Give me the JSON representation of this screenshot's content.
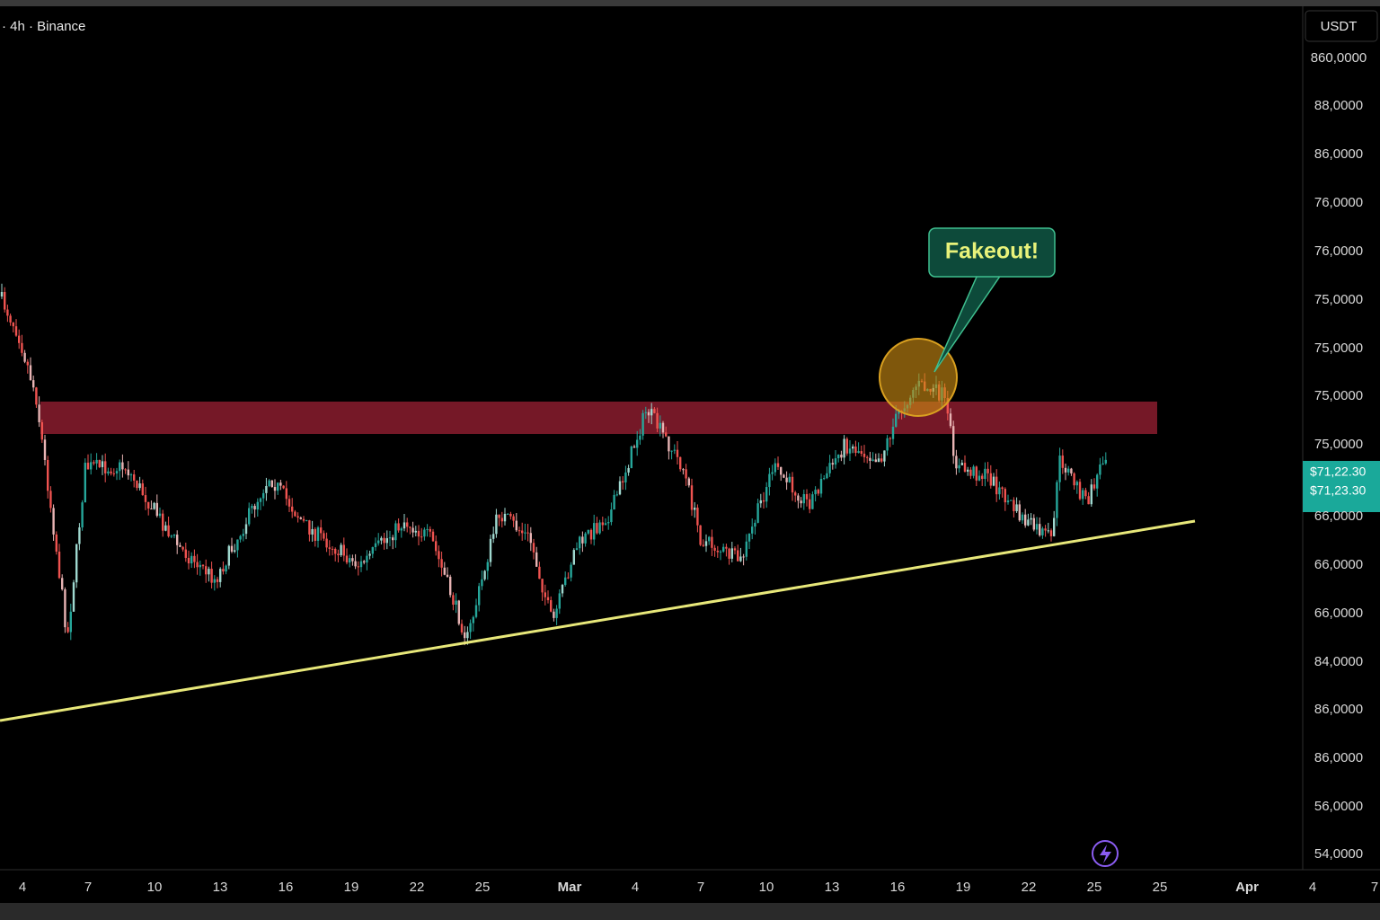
{
  "header": {
    "symbol_info": "· 4h · Binance",
    "currency": "USDT"
  },
  "price_axis": {
    "labels": [
      "860,0000",
      "88,0000",
      "86,0000",
      "76,0000",
      "76,0000",
      "75,0000",
      "75,0000",
      "75,0000",
      "75,0000",
      "66,0000",
      "66,0000",
      "66,0000",
      "84,0000",
      "86,0000",
      "86,0000",
      "56,0000",
      "54,0000"
    ]
  },
  "price_tags": [
    "$71,22.30",
    "$71,23.30"
  ],
  "time_axis": {
    "labels": [
      "4",
      "7",
      "10",
      "13",
      "16",
      "19",
      "22",
      "25",
      "Mar",
      "4",
      "7",
      "10",
      "13",
      "16",
      "19",
      "22",
      "25",
      "25",
      "Apr",
      "4",
      "7"
    ]
  },
  "annotation": {
    "text": "Fakeout!"
  }
}
